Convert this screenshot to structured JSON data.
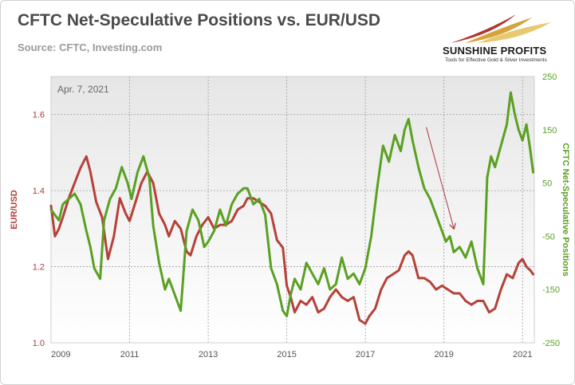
{
  "header": {
    "title": "CFTC Net-Speculative Positions vs. EUR/USD",
    "source": "Source: CFTC,  Investing.com"
  },
  "logo": {
    "brand": "SUNSHINE PROFITS",
    "tagline": "Tools for Effective Gold & Silver Investments"
  },
  "colors": {
    "eurusd": "#b5413a",
    "cftc": "#5aa021",
    "arrow": "#a83240",
    "plot_bg_top": "#e6e6e6",
    "plot_bg_bottom": "#ffffff"
  },
  "chart_data": {
    "type": "line",
    "title": "CFTC Net-Speculative Positions vs. EUR/USD",
    "subtitle": "Source: CFTC,  Investing.com",
    "annotation": "Apr. 7, 2021",
    "xlabel": "",
    "x_ticks": [
      "2009",
      "2011",
      "2013",
      "2015",
      "2017",
      "2019",
      "2021"
    ],
    "xlim": [
      2009.0,
      2021.3
    ],
    "grid": true,
    "legend": "none",
    "y_left": {
      "label": "EUR/USD",
      "ticks": [
        "1.0",
        "1.2",
        "1.4",
        "1.6"
      ],
      "range": [
        1.0,
        1.7
      ]
    },
    "y_right": {
      "label": "CFTC Net-Speculative Positions",
      "ticks": [
        "-250",
        "-150",
        "-50",
        "50",
        "150",
        "250"
      ],
      "range": [
        -250,
        250
      ]
    },
    "series": [
      {
        "axis": "left",
        "x": [
          2009.0,
          2009.1,
          2009.2,
          2009.3,
          2009.45,
          2009.6,
          2009.75,
          2009.9,
          2010.0,
          2010.15,
          2010.3,
          2010.45,
          2010.6,
          2010.75,
          2010.9,
          2011.0,
          2011.15,
          2011.3,
          2011.45,
          2011.6,
          2011.75,
          2011.9,
          2012.0,
          2012.15,
          2012.3,
          2012.45,
          2012.55,
          2012.7,
          2012.85,
          2013.0,
          2013.15,
          2013.3,
          2013.45,
          2013.6,
          2013.75,
          2013.9,
          2014.0,
          2014.15,
          2014.3,
          2014.45,
          2014.6,
          2014.75,
          2014.9,
          2015.0,
          2015.1,
          2015.2,
          2015.35,
          2015.5,
          2015.65,
          2015.8,
          2015.95,
          2016.1,
          2016.25,
          2016.4,
          2016.55,
          2016.7,
          2016.85,
          2017.0,
          2017.1,
          2017.25,
          2017.4,
          2017.55,
          2017.7,
          2017.85,
          2018.0,
          2018.1,
          2018.2,
          2018.35,
          2018.5,
          2018.65,
          2018.8,
          2018.95,
          2019.1,
          2019.25,
          2019.4,
          2019.55,
          2019.7,
          2019.85,
          2020.0,
          2020.15,
          2020.3,
          2020.45,
          2020.6,
          2020.75,
          2020.9,
          2021.0,
          2021.1,
          2021.2,
          2021.27
        ],
        "values": [
          1.36,
          1.28,
          1.3,
          1.33,
          1.38,
          1.42,
          1.46,
          1.49,
          1.45,
          1.37,
          1.33,
          1.22,
          1.28,
          1.38,
          1.34,
          1.32,
          1.37,
          1.42,
          1.45,
          1.42,
          1.34,
          1.31,
          1.28,
          1.32,
          1.3,
          1.24,
          1.23,
          1.28,
          1.31,
          1.33,
          1.3,
          1.31,
          1.31,
          1.32,
          1.35,
          1.36,
          1.38,
          1.38,
          1.37,
          1.36,
          1.34,
          1.27,
          1.25,
          1.15,
          1.12,
          1.08,
          1.11,
          1.1,
          1.12,
          1.08,
          1.09,
          1.12,
          1.14,
          1.12,
          1.11,
          1.12,
          1.06,
          1.05,
          1.07,
          1.09,
          1.14,
          1.17,
          1.18,
          1.19,
          1.23,
          1.24,
          1.23,
          1.17,
          1.17,
          1.16,
          1.14,
          1.15,
          1.14,
          1.13,
          1.13,
          1.11,
          1.1,
          1.11,
          1.11,
          1.08,
          1.09,
          1.14,
          1.18,
          1.17,
          1.21,
          1.22,
          1.2,
          1.19,
          1.18
        ]
      },
      {
        "axis": "right",
        "x": [
          2009.0,
          2009.1,
          2009.2,
          2009.3,
          2009.45,
          2009.6,
          2009.75,
          2009.9,
          2010.0,
          2010.1,
          2010.25,
          2010.35,
          2010.5,
          2010.65,
          2010.8,
          2010.95,
          2011.05,
          2011.2,
          2011.35,
          2011.5,
          2011.6,
          2011.75,
          2011.9,
          2012.0,
          2012.15,
          2012.3,
          2012.45,
          2012.6,
          2012.75,
          2012.9,
          2013.0,
          2013.15,
          2013.3,
          2013.45,
          2013.6,
          2013.75,
          2013.9,
          2014.0,
          2014.15,
          2014.3,
          2014.45,
          2014.6,
          2014.75,
          2014.9,
          2015.0,
          2015.1,
          2015.2,
          2015.35,
          2015.5,
          2015.65,
          2015.8,
          2015.95,
          2016.1,
          2016.25,
          2016.4,
          2016.55,
          2016.7,
          2016.85,
          2017.0,
          2017.15,
          2017.3,
          2017.45,
          2017.6,
          2017.75,
          2017.9,
          2018.0,
          2018.1,
          2018.2,
          2018.35,
          2018.5,
          2018.65,
          2018.8,
          2018.95,
          2019.05,
          2019.15,
          2019.25,
          2019.4,
          2019.55,
          2019.7,
          2019.85,
          2020.0,
          2020.1,
          2020.2,
          2020.3,
          2020.45,
          2020.6,
          2020.7,
          2020.8,
          2020.9,
          2021.0,
          2021.1,
          2021.2,
          2021.27
        ],
        "values": [
          0,
          -10,
          -20,
          10,
          20,
          30,
          10,
          -40,
          -70,
          -110,
          -130,
          -20,
          20,
          40,
          80,
          50,
          20,
          70,
          100,
          60,
          -30,
          -100,
          -150,
          -130,
          -160,
          -190,
          -40,
          0,
          -20,
          -70,
          -60,
          -40,
          0,
          -30,
          10,
          30,
          40,
          40,
          10,
          20,
          -10,
          -110,
          -140,
          -190,
          -200,
          -160,
          -130,
          -150,
          -100,
          -120,
          -140,
          -110,
          -150,
          -140,
          -90,
          -130,
          -120,
          -140,
          -110,
          -50,
          40,
          120,
          90,
          140,
          110,
          150,
          170,
          130,
          80,
          40,
          20,
          -10,
          -40,
          -60,
          -50,
          -80,
          -70,
          -90,
          -60,
          -110,
          -140,
          60,
          100,
          80,
          120,
          160,
          220,
          180,
          150,
          130,
          160,
          110,
          70
        ]
      }
    ],
    "annotation_arrow": {
      "from": [
        2018.55,
        155
      ],
      "to": [
        2019.25,
        -35
      ]
    }
  }
}
